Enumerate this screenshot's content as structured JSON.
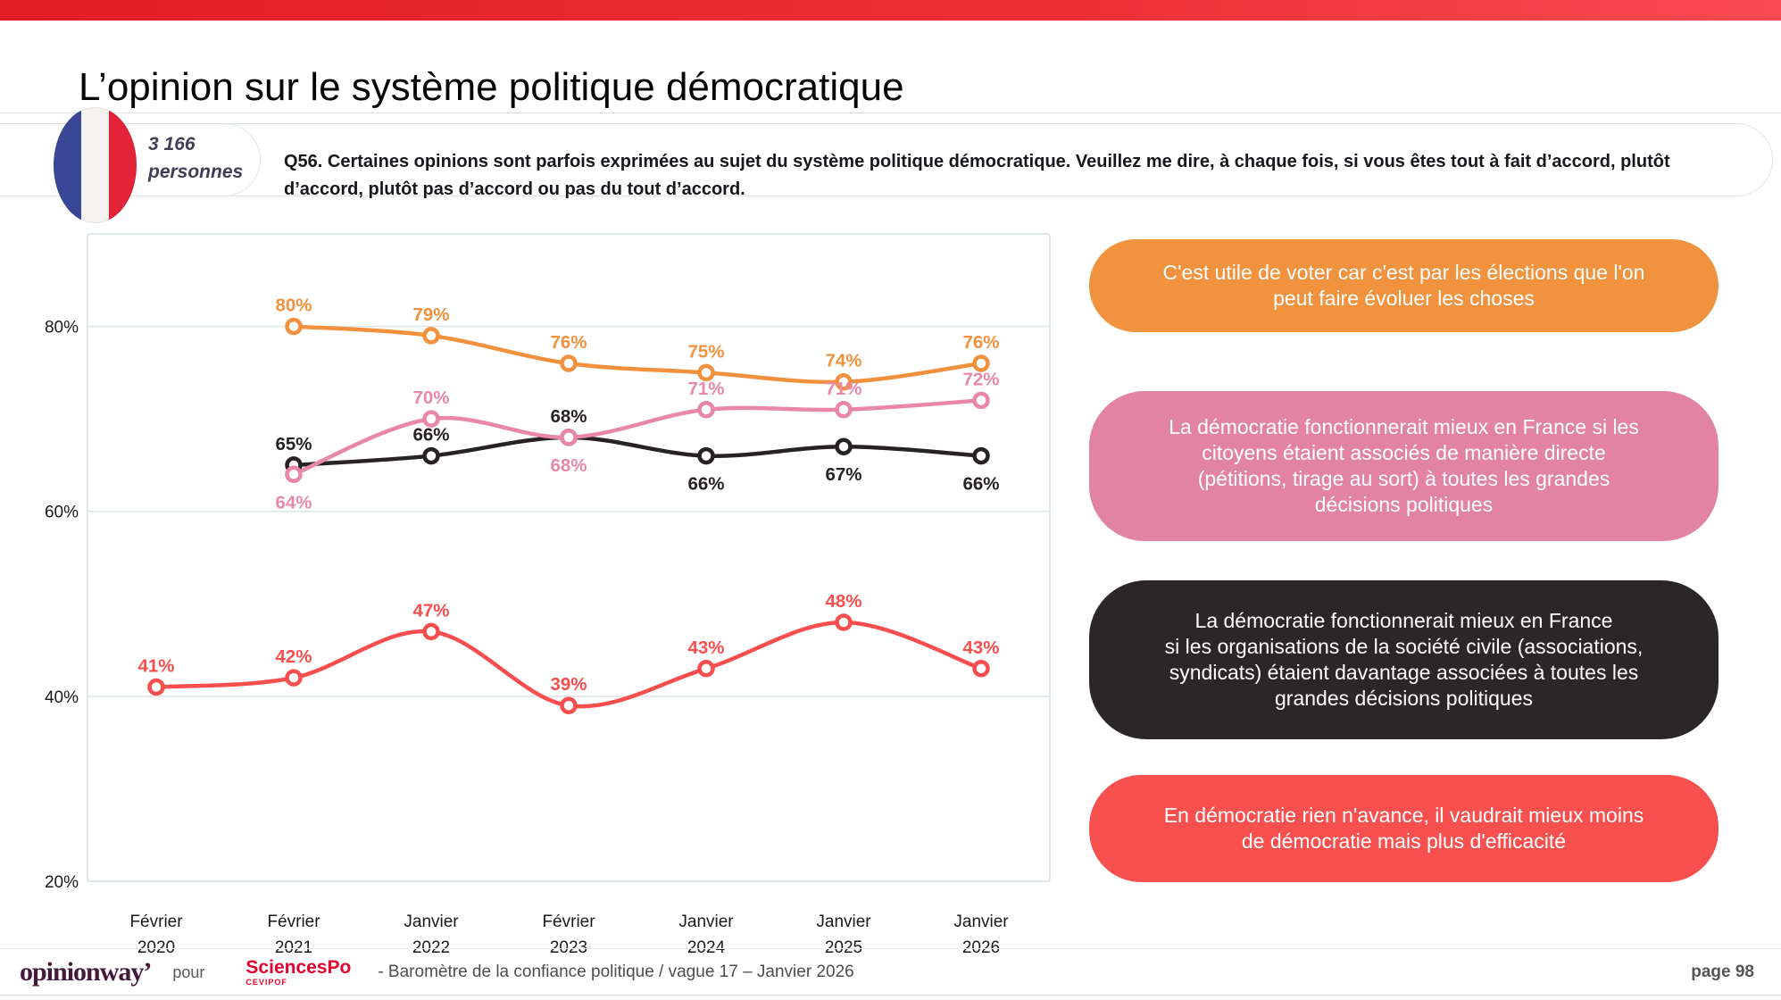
{
  "page": {
    "title": "L’opinion sur le système politique démocratique",
    "page_number": "page 98"
  },
  "header": {
    "sample_size": "3 166",
    "sample_unit": "personnes",
    "question": "Q56. Certaines opinions sont parfois exprimées au sujet du système politique démocratique. Veuillez me dire, à chaque fois, si vous êtes tout à fait d’accord, plutôt d’accord, plutôt pas d’accord ou pas du tout d’accord."
  },
  "legend": [
    {
      "id": "vote",
      "color": "#F0923E",
      "text": "C'est utile de voter car c'est par les élections que l'on\npeut faire évoluer les choses"
    },
    {
      "id": "citizens",
      "color": "#E383A4",
      "text": "La démocratie fonctionnerait mieux en France si les\ncitoyens étaient associés de manière directe\n(pétitions, tirage au sort) à toutes les grandes\ndécisions politiques"
    },
    {
      "id": "civil",
      "color": "#2B2728",
      "text": "La démocratie fonctionnerait mieux en France\nsi les organisations de la société civile (associations,\nsyndicats) étaient davantage associées à toutes les\ngrandes décisions politiques"
    },
    {
      "id": "efficiency",
      "color": "#F8504F",
      "text": "En démocratie rien n'avance, il vaudrait mieux moins\nde démocratie mais plus d'efficacité"
    }
  ],
  "chart_data": {
    "type": "line",
    "title": "",
    "xlabel": "",
    "ylabel": "",
    "ylim": [
      20,
      90
    ],
    "yticks": [
      80,
      60,
      40,
      20
    ],
    "grid": true,
    "legend_position": "right",
    "categories": [
      [
        "Février",
        "2020"
      ],
      [
        "Février",
        "2021"
      ],
      [
        "Janvier",
        "2022"
      ],
      [
        "Février",
        "2023"
      ],
      [
        "Janvier",
        "2024"
      ],
      [
        "Janvier",
        "2025"
      ],
      [
        "Janvier",
        "2026"
      ]
    ],
    "series": [
      {
        "name": "C'est utile de voter car c'est par les élections que l'on peut faire évoluer les choses",
        "color": "#F2913D",
        "values": [
          null,
          80,
          79,
          76,
          75,
          74,
          76
        ],
        "label_pos": [
          null,
          "above",
          "above",
          "above",
          "above",
          "above",
          "above"
        ]
      },
      {
        "name": "La démocratie fonctionnerait mieux en France si les citoyens étaient associés de manière directe (pétitions, tirage au sort) à toutes les grandes décisions politiques",
        "color": "#E887A8",
        "values": [
          null,
          64,
          70,
          68,
          71,
          71,
          72
        ],
        "label_pos": [
          null,
          "below",
          "above",
          "below",
          "above",
          "above",
          "above"
        ]
      },
      {
        "name": "La démocratie fonctionnerait mieux en France si les organisations de la société civile (associations, syndicats) étaient davantage associées à toutes les grandes décisions politiques",
        "color": "#272325",
        "values": [
          null,
          65,
          66,
          68,
          66,
          67,
          66
        ],
        "label_pos": [
          null,
          "above",
          "above",
          "above",
          "below",
          "below",
          "below"
        ]
      },
      {
        "name": "En démocratie rien n'avance, il vaudrait mieux moins de démocratie mais plus d'efficacité",
        "color": "#F84E4E",
        "values": [
          41,
          42,
          47,
          39,
          43,
          48,
          43
        ],
        "label_pos": [
          "above",
          "above",
          "above",
          "above",
          "above",
          "above",
          "above"
        ]
      }
    ]
  },
  "footer": {
    "brand": "opinionway’",
    "pour": "pour",
    "sciencespo": "SciencesPo",
    "cevipof": "CEVIPOF",
    "caption": "-  Baromètre de la confiance politique / vague 17 – Janvier 2026",
    "page": "page 98"
  }
}
